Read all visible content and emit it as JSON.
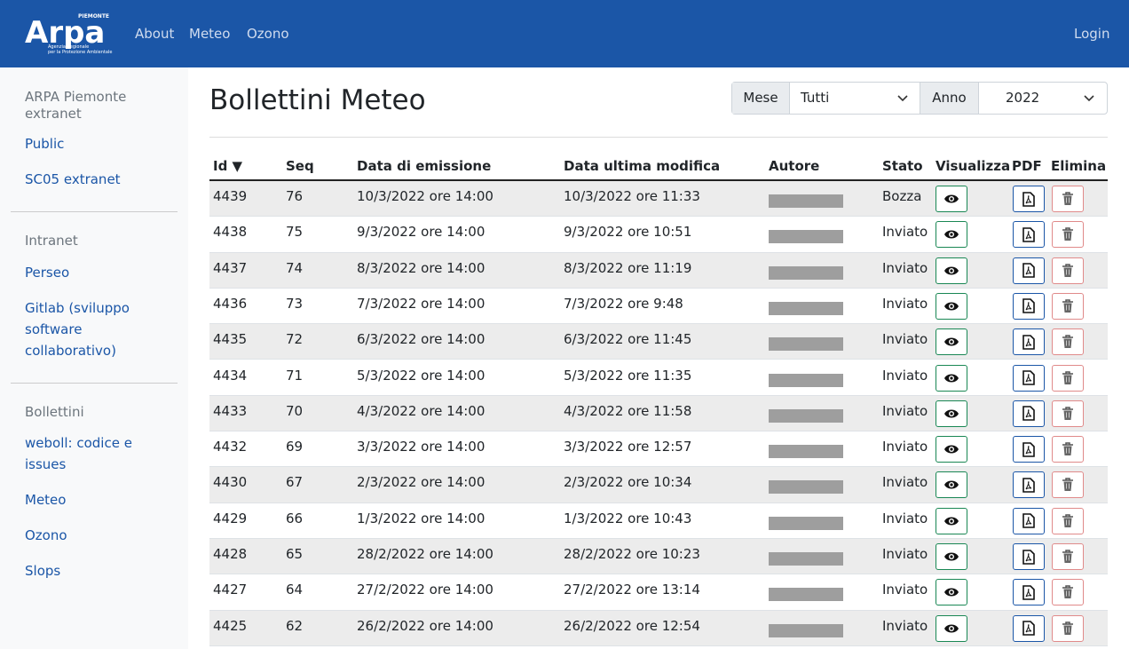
{
  "header": {
    "logo": {
      "text": "Arpa",
      "region": "PIEMONTE",
      "line1": "Agenzia Regionale",
      "line2": "per la Protezione Ambientale"
    },
    "nav": [
      "About",
      "Meteo",
      "Ozono"
    ],
    "login": "Login"
  },
  "sidebar": [
    {
      "title": "ARPA Piemonte extranet",
      "links": [
        "Public",
        "SC05 extranet"
      ]
    },
    {
      "title": "Intranet",
      "links": [
        "Perseo",
        "Gitlab (sviluppo software collaborativo)"
      ]
    },
    {
      "title": "Bollettini",
      "links": [
        "weboll: codice e issues",
        "Meteo",
        "Ozono",
        "Slops"
      ]
    }
  ],
  "main": {
    "title": "Bollettini Meteo",
    "filters": {
      "month_label": "Mese",
      "month_value": "Tutti",
      "year_label": "Anno",
      "year_value": "2022"
    }
  },
  "table": {
    "headers": [
      "Id ▼",
      "Seq",
      "Data di emissione",
      "Data ultima modifica",
      "Autore",
      "Stato",
      "Visualizza",
      "PDF",
      "Elimina"
    ],
    "rows": [
      [
        "4439",
        "76",
        "10/3/2022 ore 14:00",
        "10/3/2022 ore 11:33",
        "Bozza"
      ],
      [
        "4438",
        "75",
        "9/3/2022 ore 14:00",
        "9/3/2022 ore 10:51",
        "Inviato"
      ],
      [
        "4437",
        "74",
        "8/3/2022 ore 14:00",
        "8/3/2022 ore 11:19",
        "Inviato"
      ],
      [
        "4436",
        "73",
        "7/3/2022 ore 14:00",
        "7/3/2022 ore 9:48",
        "Inviato"
      ],
      [
        "4435",
        "72",
        "6/3/2022 ore 14:00",
        "6/3/2022 ore 11:45",
        "Inviato"
      ],
      [
        "4434",
        "71",
        "5/3/2022 ore 14:00",
        "5/3/2022 ore 11:35",
        "Inviato"
      ],
      [
        "4433",
        "70",
        "4/3/2022 ore 14:00",
        "4/3/2022 ore 11:58",
        "Inviato"
      ],
      [
        "4432",
        "69",
        "3/3/2022 ore 14:00",
        "3/3/2022 ore 12:57",
        "Inviato"
      ],
      [
        "4430",
        "67",
        "2/3/2022 ore 14:00",
        "2/3/2022 ore 10:34",
        "Inviato"
      ],
      [
        "4429",
        "66",
        "1/3/2022 ore 14:00",
        "1/3/2022 ore 10:43",
        "Inviato"
      ],
      [
        "4428",
        "65",
        "28/2/2022 ore 14:00",
        "28/2/2022 ore 10:23",
        "Inviato"
      ],
      [
        "4427",
        "64",
        "27/2/2022 ore 14:00",
        "27/2/2022 ore 13:14",
        "Inviato"
      ],
      [
        "4425",
        "62",
        "26/2/2022 ore 14:00",
        "26/2/2022 ore 12:54",
        "Inviato"
      ]
    ]
  }
}
